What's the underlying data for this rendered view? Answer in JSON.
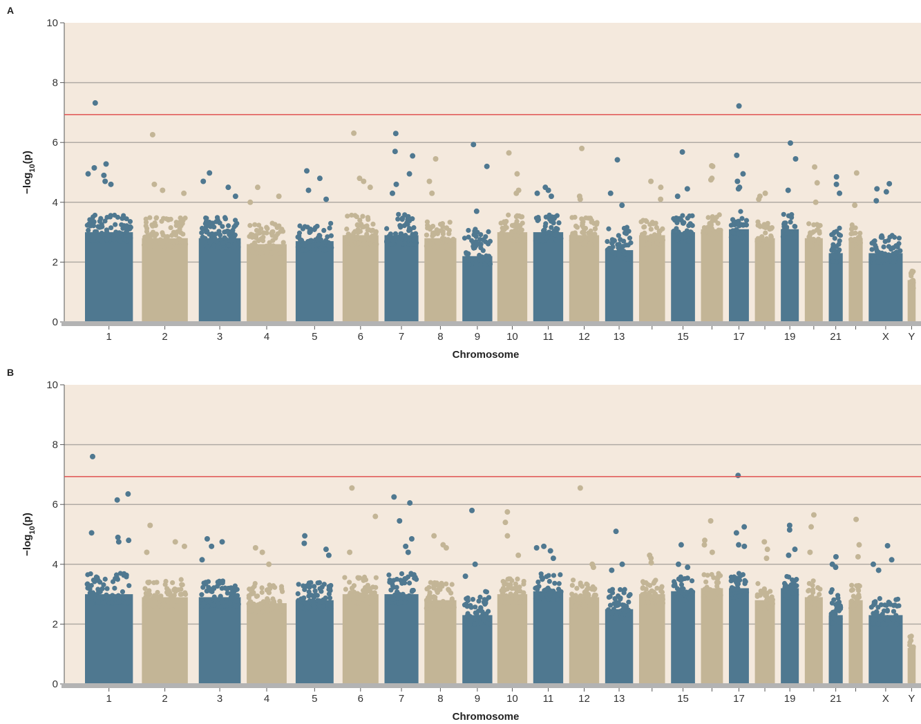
{
  "colors": {
    "plot_background": "#f4e9dd",
    "series_dark": "#4f7890",
    "series_light": "#c3b596",
    "threshold_line": "#e05050",
    "gridline": "#b0aaa4",
    "baseline": "#b3b3b3"
  },
  "chart_data": [
    {
      "panel_label": "A",
      "type": "scatter",
      "xlabel": "Chromosome",
      "ylabel": "−log10(p)",
      "ylim": [
        0,
        10
      ],
      "yticks": [
        0,
        2,
        4,
        6,
        8,
        10
      ],
      "grid": "horizontal",
      "threshold": 6.93,
      "chromosomes": [
        {
          "name": "1",
          "label": "1",
          "color": "dark",
          "ceiling": 3.0,
          "cap": 3.6,
          "top_points": [
            7.32,
            5.28,
            5.15,
            4.95,
            4.9,
            4.7,
            4.6
          ]
        },
        {
          "name": "2",
          "label": "2",
          "color": "light",
          "ceiling": 2.8,
          "cap": 3.5,
          "top_points": [
            6.26,
            4.6,
            4.4,
            4.3
          ]
        },
        {
          "name": "3",
          "label": "3",
          "color": "dark",
          "ceiling": 2.8,
          "cap": 3.5,
          "top_points": [
            4.98,
            4.7,
            4.5,
            4.2
          ]
        },
        {
          "name": "4",
          "label": "4",
          "color": "light",
          "ceiling": 2.6,
          "cap": 3.3,
          "top_points": [
            4.5,
            4.2,
            4.0
          ]
        },
        {
          "name": "5",
          "label": "5",
          "color": "dark",
          "ceiling": 2.7,
          "cap": 3.3,
          "top_points": [
            5.05,
            4.8,
            4.4,
            4.1
          ]
        },
        {
          "name": "6",
          "label": "6",
          "color": "light",
          "ceiling": 2.9,
          "cap": 3.6,
          "top_points": [
            6.31,
            4.8,
            4.7,
            4.5
          ]
        },
        {
          "name": "7",
          "label": "7",
          "color": "dark",
          "ceiling": 2.9,
          "cap": 3.6,
          "top_points": [
            6.3,
            5.7,
            5.55,
            4.95,
            4.6,
            4.3
          ]
        },
        {
          "name": "8",
          "label": "8",
          "color": "light",
          "ceiling": 2.8,
          "cap": 3.4,
          "top_points": [
            5.45,
            4.7,
            4.3
          ]
        },
        {
          "name": "9",
          "label": "9",
          "color": "dark",
          "ceiling": 2.2,
          "cap": 3.1,
          "top_points": [
            5.93,
            5.2,
            3.7
          ]
        },
        {
          "name": "10",
          "label": "10",
          "color": "light",
          "ceiling": 3.0,
          "cap": 3.6,
          "top_points": [
            5.65,
            4.95,
            4.4,
            4.3
          ]
        },
        {
          "name": "11",
          "label": "11",
          "color": "dark",
          "ceiling": 3.0,
          "cap": 3.6,
          "top_points": [
            4.5,
            4.4,
            4.3,
            4.2
          ]
        },
        {
          "name": "12",
          "label": "12",
          "color": "light",
          "ceiling": 2.9,
          "cap": 3.5,
          "top_points": [
            5.8,
            4.2,
            4.1
          ]
        },
        {
          "name": "13",
          "label": "13",
          "color": "dark",
          "ceiling": 2.4,
          "cap": 3.2,
          "top_points": [
            5.42,
            4.3,
            3.9
          ]
        },
        {
          "name": "14",
          "label": "",
          "color": "light",
          "ceiling": 2.9,
          "cap": 3.4,
          "top_points": [
            4.7,
            4.5,
            4.1
          ]
        },
        {
          "name": "15",
          "label": "15",
          "color": "dark",
          "ceiling": 3.0,
          "cap": 3.6,
          "top_points": [
            5.68,
            4.45,
            4.2
          ]
        },
        {
          "name": "16",
          "label": "",
          "color": "light",
          "ceiling": 3.1,
          "cap": 3.6,
          "top_points": [
            5.22,
            5.2,
            4.8,
            4.75
          ]
        },
        {
          "name": "17",
          "label": "17",
          "color": "dark",
          "ceiling": 3.1,
          "cap": 3.7,
          "top_points": [
            7.22,
            5.57,
            4.95,
            4.7,
            4.5,
            4.45
          ]
        },
        {
          "name": "18",
          "label": "",
          "color": "light",
          "ceiling": 2.8,
          "cap": 3.4,
          "top_points": [
            4.3,
            4.2,
            4.1
          ]
        },
        {
          "name": "19",
          "label": "19",
          "color": "dark",
          "ceiling": 3.1,
          "cap": 3.6,
          "top_points": [
            5.98,
            5.45,
            4.4
          ]
        },
        {
          "name": "20",
          "label": "",
          "color": "light",
          "ceiling": 2.8,
          "cap": 3.4,
          "top_points": [
            5.18,
            4.65,
            4.0
          ]
        },
        {
          "name": "21",
          "label": "21",
          "color": "dark",
          "ceiling": 2.3,
          "cap": 3.3,
          "top_points": [
            4.85,
            4.6,
            4.3
          ]
        },
        {
          "name": "22",
          "label": "",
          "color": "light",
          "ceiling": 2.8,
          "cap": 3.3,
          "top_points": [
            4.98,
            3.9
          ]
        },
        {
          "name": "X",
          "label": "X",
          "color": "dark",
          "ceiling": 2.3,
          "cap": 2.9,
          "top_points": [
            4.62,
            4.45,
            4.35,
            4.05
          ]
        },
        {
          "name": "Y",
          "label": "Y",
          "color": "light",
          "ceiling": 1.4,
          "cap": 1.8,
          "top_points": []
        }
      ]
    },
    {
      "panel_label": "B",
      "type": "scatter",
      "xlabel": "Chromosome",
      "ylabel": "−log10(p)",
      "ylim": [
        0,
        10
      ],
      "yticks": [
        0,
        2,
        4,
        6,
        8,
        10
      ],
      "grid": "horizontal",
      "threshold": 6.93,
      "chromosomes": [
        {
          "name": "1",
          "label": "1",
          "color": "dark",
          "ceiling": 3.0,
          "cap": 3.7,
          "top_points": [
            7.6,
            6.35,
            6.15,
            5.05,
            4.9,
            4.8,
            4.75
          ]
        },
        {
          "name": "2",
          "label": "2",
          "color": "light",
          "ceiling": 2.9,
          "cap": 3.5,
          "top_points": [
            5.3,
            4.75,
            4.6,
            4.4
          ]
        },
        {
          "name": "3",
          "label": "3",
          "color": "dark",
          "ceiling": 2.9,
          "cap": 3.5,
          "top_points": [
            4.85,
            4.75,
            4.6,
            4.15
          ]
        },
        {
          "name": "4",
          "label": "4",
          "color": "light",
          "ceiling": 2.7,
          "cap": 3.4,
          "top_points": [
            4.55,
            4.4,
            4.0
          ]
        },
        {
          "name": "5",
          "label": "5",
          "color": "dark",
          "ceiling": 2.8,
          "cap": 3.4,
          "top_points": [
            4.95,
            4.7,
            4.5,
            4.3
          ]
        },
        {
          "name": "6",
          "label": "6",
          "color": "light",
          "ceiling": 3.0,
          "cap": 3.6,
          "top_points": [
            6.55,
            5.6,
            4.4
          ]
        },
        {
          "name": "7",
          "label": "7",
          "color": "dark",
          "ceiling": 3.0,
          "cap": 3.7,
          "top_points": [
            6.25,
            6.05,
            5.45,
            4.85,
            4.6,
            4.4
          ]
        },
        {
          "name": "8",
          "label": "8",
          "color": "light",
          "ceiling": 2.8,
          "cap": 3.4,
          "top_points": [
            4.95,
            4.65,
            4.55
          ]
        },
        {
          "name": "9",
          "label": "9",
          "color": "dark",
          "ceiling": 2.3,
          "cap": 3.1,
          "top_points": [
            5.8,
            4.0,
            3.6
          ]
        },
        {
          "name": "10",
          "label": "10",
          "color": "light",
          "ceiling": 3.0,
          "cap": 3.6,
          "top_points": [
            5.75,
            5.4,
            4.95,
            4.3
          ]
        },
        {
          "name": "11",
          "label": "11",
          "color": "dark",
          "ceiling": 3.1,
          "cap": 3.7,
          "top_points": [
            4.6,
            4.55,
            4.45,
            4.2
          ]
        },
        {
          "name": "12",
          "label": "12",
          "color": "light",
          "ceiling": 2.9,
          "cap": 3.5,
          "top_points": [
            6.55,
            4.0,
            3.9
          ]
        },
        {
          "name": "13",
          "label": "13",
          "color": "dark",
          "ceiling": 2.5,
          "cap": 3.2,
          "top_points": [
            5.1,
            4.0,
            3.8
          ]
        },
        {
          "name": "14",
          "label": "",
          "color": "light",
          "ceiling": 3.0,
          "cap": 3.5,
          "top_points": [
            4.3,
            4.2,
            4.05
          ]
        },
        {
          "name": "15",
          "label": "15",
          "color": "dark",
          "ceiling": 3.1,
          "cap": 3.6,
          "top_points": [
            4.65,
            4.0,
            3.9
          ]
        },
        {
          "name": "16",
          "label": "",
          "color": "light",
          "ceiling": 3.2,
          "cap": 3.7,
          "top_points": [
            5.45,
            4.8,
            4.65,
            4.4
          ]
        },
        {
          "name": "17",
          "label": "17",
          "color": "dark",
          "ceiling": 3.2,
          "cap": 3.7,
          "top_points": [
            6.97,
            5.25,
            5.05,
            4.65,
            4.6
          ]
        },
        {
          "name": "18",
          "label": "",
          "color": "light",
          "ceiling": 2.8,
          "cap": 3.4,
          "top_points": [
            4.75,
            4.5,
            4.2
          ]
        },
        {
          "name": "19",
          "label": "19",
          "color": "dark",
          "ceiling": 3.2,
          "cap": 3.6,
          "top_points": [
            5.3,
            5.15,
            4.5,
            4.3
          ]
        },
        {
          "name": "20",
          "label": "",
          "color": "light",
          "ceiling": 2.9,
          "cap": 3.5,
          "top_points": [
            5.65,
            5.25,
            4.4
          ]
        },
        {
          "name": "21",
          "label": "21",
          "color": "dark",
          "ceiling": 2.3,
          "cap": 3.2,
          "top_points": [
            4.25,
            4.0,
            3.9
          ]
        },
        {
          "name": "22",
          "label": "",
          "color": "light",
          "ceiling": 2.8,
          "cap": 3.3,
          "top_points": [
            5.5,
            4.65,
            4.25
          ]
        },
        {
          "name": "X",
          "label": "X",
          "color": "dark",
          "ceiling": 2.3,
          "cap": 2.9,
          "top_points": [
            4.62,
            4.15,
            4.0,
            3.8
          ]
        },
        {
          "name": "Y",
          "label": "Y",
          "color": "light",
          "ceiling": 1.2,
          "cap": 1.6,
          "top_points": []
        }
      ]
    }
  ]
}
